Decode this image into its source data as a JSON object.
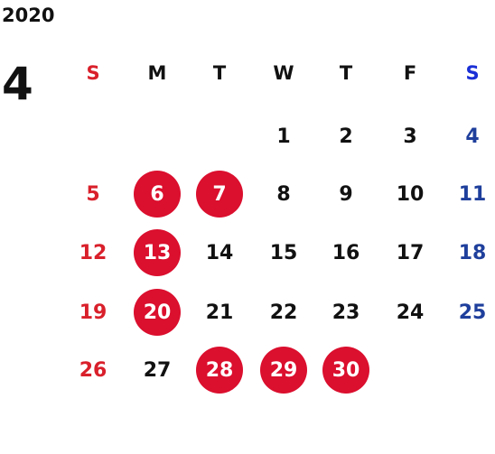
{
  "year": "2020",
  "month": "4",
  "weekdays": [
    "S",
    "M",
    "T",
    "W",
    "T",
    "F",
    "S"
  ],
  "colors": {
    "sunday": "#d9202b",
    "saturday": "#1f3f9c",
    "saturday_header": "#1a2fd6",
    "holiday_circle": "#db0f2e",
    "weekday": "#111111"
  },
  "weeks": [
    [
      "",
      "",
      "",
      "1",
      "2",
      "3",
      "4"
    ],
    [
      "5",
      "6",
      "7",
      "8",
      "9",
      "10",
      "11"
    ],
    [
      "12",
      "13",
      "14",
      "15",
      "16",
      "17",
      "18"
    ],
    [
      "19",
      "20",
      "21",
      "22",
      "23",
      "24",
      "25"
    ],
    [
      "26",
      "27",
      "28",
      "29",
      "30",
      "",
      ""
    ]
  ],
  "highlighted_days": [
    "6",
    "7",
    "13",
    "20",
    "28",
    "29",
    "30"
  ]
}
